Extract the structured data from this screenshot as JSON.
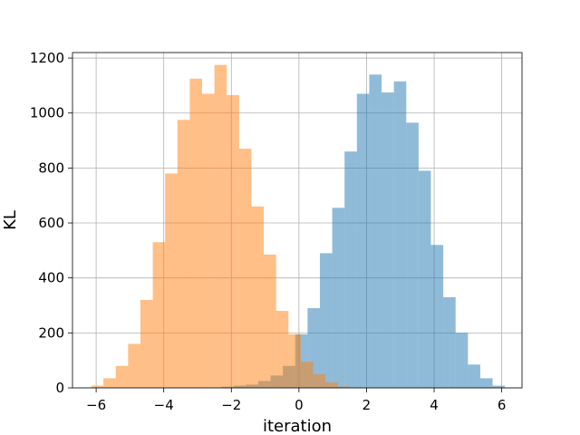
{
  "chart_data": {
    "type": "bar",
    "title": "",
    "xlabel": "iteration",
    "ylabel": "KL",
    "xlim": [
      -6.7,
      6.6
    ],
    "ylim": [
      0,
      1220
    ],
    "grid": true,
    "legend": "none",
    "x_ticks": [
      -6,
      -4,
      -2,
      0,
      2,
      4,
      6
    ],
    "x_tick_labels": [
      "−6",
      "−4",
      "−2",
      "0",
      "2",
      "4",
      "6"
    ],
    "y_ticks": [
      0,
      200,
      400,
      600,
      800,
      1000,
      1200
    ],
    "y_tick_labels": [
      "0",
      "200",
      "400",
      "600",
      "800",
      "1000",
      "1200"
    ],
    "series": [
      {
        "color": "#1f77b4",
        "opacity": 0.5,
        "bin_edges": [
          -2.3,
          -1.935,
          -1.57,
          -1.205,
          -0.84,
          -0.475,
          -0.11,
          0.255,
          0.62,
          0.985,
          1.35,
          1.715,
          2.08,
          2.445,
          2.81,
          3.175,
          3.54,
          3.905,
          4.27,
          4.635,
          5.0,
          5.365,
          5.73,
          6.095
        ],
        "values": [
          4,
          8,
          12,
          25,
          45,
          80,
          195,
          290,
          490,
          655,
          860,
          1070,
          1140,
          1075,
          1115,
          965,
          790,
          520,
          330,
          200,
          85,
          35,
          8
        ]
      },
      {
        "color": "#ff7f0e",
        "opacity": 0.5,
        "bin_edges": [
          -6.15,
          -5.785,
          -5.42,
          -5.055,
          -4.69,
          -4.325,
          -3.96,
          -3.595,
          -3.23,
          -2.865,
          -2.5,
          -2.135,
          -1.77,
          -1.405,
          -1.04,
          -0.675,
          -0.31,
          0.055,
          0.42,
          0.785,
          1.15,
          1.515
        ],
        "values": [
          8,
          35,
          80,
          160,
          320,
          530,
          780,
          975,
          1125,
          1070,
          1175,
          1065,
          870,
          660,
          485,
          280,
          195,
          95,
          50,
          20,
          5
        ]
      }
    ]
  }
}
